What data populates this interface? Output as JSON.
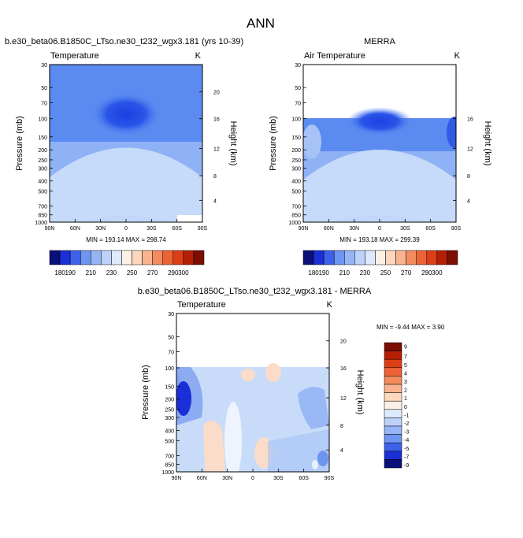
{
  "figure_title": "ANN",
  "colors": {
    "deep_blue": "#1a2fd8",
    "mid_blue": "#4a7ef0",
    "light_blue": "#7ea8f5",
    "pale_blue": "#c8dcfa",
    "peach": "#fbdcc8",
    "orange": "#f59a6a",
    "red_orange": "#ef6a3a",
    "deep_red": "#d83010"
  },
  "chart_data": [
    {
      "type": "heatmap",
      "title": "b.e30_beta06.B1850C_LTso.ne30_t232_wgx3.181 (yrs 10-39)",
      "left_label": "Temperature",
      "right_label": "K",
      "ylabel": "Pressure (mb)",
      "ylabel_right": "Height (km)",
      "x_ticks": [
        "90N",
        "60N",
        "30N",
        "0",
        "30S",
        "60S",
        "90S"
      ],
      "y_ticks": [
        "30",
        "50",
        "70",
        "100",
        "150",
        "200",
        "250",
        "300",
        "400",
        "500",
        "700",
        "850",
        "1000"
      ],
      "y2_ticks": [
        "20",
        "16",
        "12",
        "8",
        "4"
      ],
      "xlim": [
        90,
        -90
      ],
      "ylim": [
        1000,
        30
      ],
      "log_y": true,
      "stats": "MIN = 193.14   MAX = 298.74",
      "min": 193.14,
      "max": 298.74,
      "colorbar_labels": [
        "180",
        "190",
        "210",
        "230",
        "250",
        "270",
        "290",
        "300"
      ]
    },
    {
      "type": "heatmap",
      "title": "MERRA",
      "left_label": "Air Temperature",
      "right_label": "K",
      "ylabel": "Pressure (mb)",
      "ylabel_right": "Height (km)",
      "x_ticks": [
        "90N",
        "60N",
        "30N",
        "0",
        "30S",
        "60S",
        "90S"
      ],
      "y_ticks": [
        "30",
        "50",
        "70",
        "100",
        "150",
        "200",
        "250",
        "300",
        "400",
        "500",
        "700",
        "850",
        "1000"
      ],
      "y2_ticks": [
        "16",
        "12",
        "8",
        "4"
      ],
      "xlim": [
        90,
        -90
      ],
      "ylim": [
        1000,
        30
      ],
      "log_y": true,
      "data_top_pressure": 100,
      "stats": "MIN = 193.18   MAX = 299.39",
      "min": 193.18,
      "max": 299.39,
      "colorbar_labels": [
        "180",
        "190",
        "210",
        "230",
        "250",
        "270",
        "290",
        "300"
      ]
    },
    {
      "type": "heatmap",
      "title": "b.e30_beta06.B1850C_LTso.ne30_t232_wgx3.181 - MERRA",
      "left_label": "Temperature",
      "right_label": "K",
      "ylabel": "Pressure (mb)",
      "ylabel_right": "Height (km)",
      "x_ticks": [
        "90N",
        "60N",
        "30N",
        "0",
        "30S",
        "60S",
        "90S"
      ],
      "y_ticks": [
        "30",
        "50",
        "70",
        "100",
        "150",
        "200",
        "250",
        "300",
        "400",
        "500",
        "700",
        "850",
        "1000"
      ],
      "y2_ticks": [
        "20",
        "16",
        "12",
        "8",
        "4"
      ],
      "xlim": [
        90,
        -90
      ],
      "ylim": [
        1000,
        30
      ],
      "log_y": true,
      "data_top_pressure": 100,
      "stats": "MIN = -9.44   MAX =   3.90",
      "min": -9.44,
      "max": 3.9,
      "colorbar_labels": [
        "9",
        "7",
        "5",
        "4",
        "3",
        "2",
        "1",
        "0",
        "-1",
        "-2",
        "-3",
        "-4",
        "-5",
        "-7",
        "-9"
      ]
    }
  ]
}
